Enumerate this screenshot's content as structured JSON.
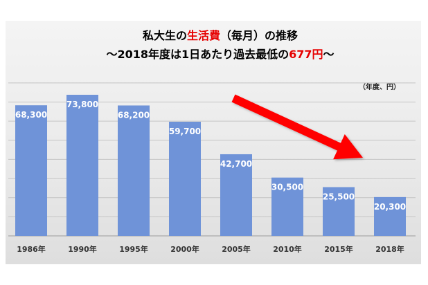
{
  "chart_data": {
    "type": "bar",
    "title_parts": [
      {
        "text": "私大生の",
        "color": "#000000"
      },
      {
        "text": "生活費",
        "color": "#e60000"
      },
      {
        "text": "（毎月）の推移",
        "color": "#000000"
      }
    ],
    "subtitle_parts": [
      {
        "text": "～2018年度は1日あたり過去最低の",
        "color": "#000000"
      },
      {
        "text": "677円",
        "color": "#e60000"
      },
      {
        "text": "～",
        "color": "#000000"
      }
    ],
    "unit_label": "（年度、円）",
    "categories": [
      "1986年",
      "1990年",
      "1995年",
      "2000年",
      "2005年",
      "2010年",
      "2015年",
      "2018年"
    ],
    "values": [
      68300,
      73800,
      68200,
      59700,
      42700,
      30500,
      25500,
      20300
    ],
    "value_labels": [
      "68,300",
      "73,800",
      "68,200",
      "59,700",
      "42,700",
      "30,500",
      "25,500",
      "20,300"
    ],
    "ylim": [
      0,
      80000
    ],
    "grid": true,
    "bar_color": "#6f93d8",
    "arrow_color": "#ff0000",
    "annotation": "downward-trend-arrow"
  }
}
